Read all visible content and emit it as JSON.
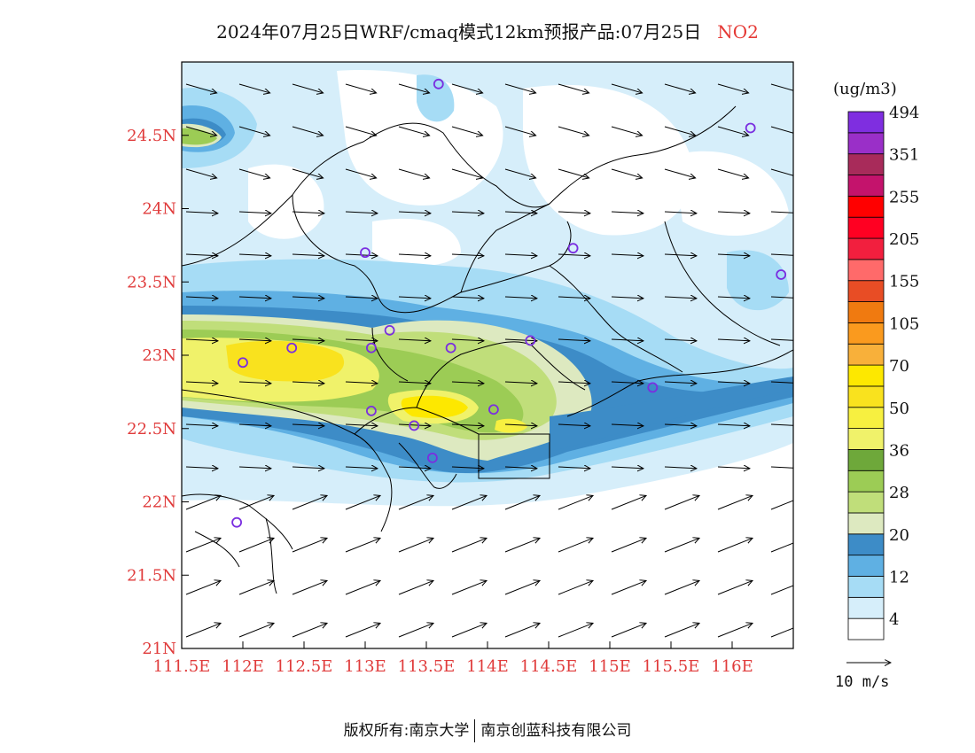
{
  "title": {
    "main": "2024年07月25日WRF/cmaq模式12km预报产品:07月25日",
    "species": "NO2"
  },
  "map": {
    "lon_range": [
      111.5,
      116.5
    ],
    "lat_range": [
      21.0,
      25.0
    ],
    "lon_ticks": [
      "111.5E",
      "112E",
      "112.5E",
      "113E",
      "113.5E",
      "114E",
      "114.5E",
      "115E",
      "115.5E",
      "116E"
    ],
    "lon_tick_values": [
      111.5,
      112,
      112.5,
      113,
      113.5,
      114,
      114.5,
      115,
      115.5,
      116
    ],
    "lat_ticks": [
      "21N",
      "21.5N",
      "22N",
      "22.5N",
      "23N",
      "23.5N",
      "24N",
      "24.5N"
    ],
    "lat_tick_values": [
      21,
      21.5,
      22,
      22.5,
      23,
      23.5,
      24,
      24.5
    ],
    "stations": [
      [
        112.0,
        22.95
      ],
      [
        112.4,
        23.05
      ],
      [
        113.05,
        23.05
      ],
      [
        113.2,
        23.17
      ],
      [
        113.7,
        23.05
      ],
      [
        114.35,
        23.1
      ],
      [
        113.05,
        22.62
      ],
      [
        113.4,
        22.52
      ],
      [
        113.55,
        22.3
      ],
      [
        114.05,
        22.63
      ],
      [
        111.95,
        21.86
      ],
      [
        113.6,
        24.85
      ],
      [
        113.0,
        23.7
      ],
      [
        114.7,
        23.73
      ],
      [
        116.15,
        24.55
      ],
      [
        116.4,
        23.55
      ],
      [
        115.35,
        22.78
      ]
    ]
  },
  "colorbar": {
    "unit": "(ug/m3)",
    "colors": [
      "#ffffff",
      "#d6eefa",
      "#a6dcf5",
      "#5fb0e3",
      "#3d8cc7",
      "#dde9c0",
      "#c0de7a",
      "#9ccc55",
      "#6ea83a",
      "#f0f26a",
      "#f7f040",
      "#f9e21e",
      "#fde800",
      "#f8b03a",
      "#fa9a1e",
      "#f07a10",
      "#e84d25",
      "#ff6a6a",
      "#f21f3e",
      "#ff0022",
      "#ff0000",
      "#c4136c",
      "#a82b5a",
      "#9a2fc8",
      "#7f2ee0"
    ],
    "labels": [
      "4",
      "12",
      "20",
      "28",
      "36",
      "50",
      "70",
      "105",
      "155",
      "205",
      "255",
      "351",
      "494"
    ]
  },
  "wind_ref": {
    "label": "10 m/s"
  },
  "footer": {
    "left": "版权所有:南京大学",
    "right": "南京创蓝科技有限公司"
  }
}
